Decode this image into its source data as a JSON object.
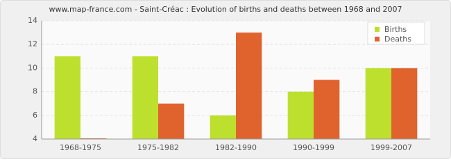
{
  "chart_data": {
    "type": "bar",
    "title": "www.map-france.com - Saint-Créac : Evolution of births and deaths between 1968 and 2007",
    "categories": [
      "1968-1975",
      "1975-1982",
      "1982-1990",
      "1990-1999",
      "1999-2007"
    ],
    "series": [
      {
        "name": "Births",
        "color": "#bde02e",
        "values": [
          11,
          11,
          6,
          8,
          10
        ]
      },
      {
        "name": "Deaths",
        "color": "#e0632e",
        "values": [
          4,
          7,
          13,
          9,
          10
        ]
      }
    ],
    "ylim": [
      4,
      14
    ],
    "yticks": [
      4,
      6,
      8,
      10,
      12,
      14
    ],
    "grid": true,
    "legend": "top-right"
  }
}
